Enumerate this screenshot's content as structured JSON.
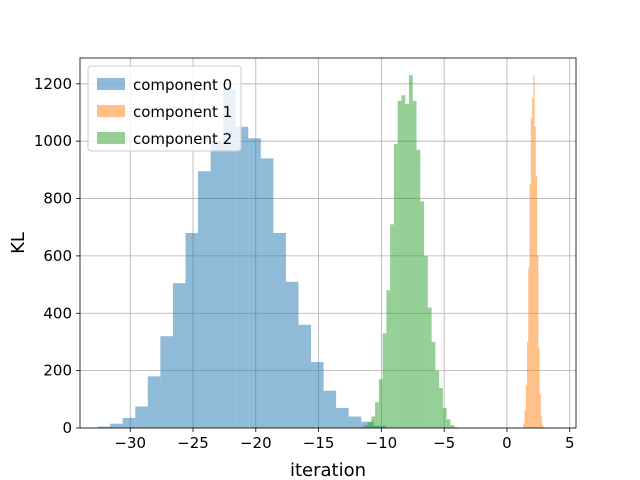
{
  "chart_data": {
    "type": "bar",
    "xlabel": "iteration",
    "ylabel": "KL",
    "xlim": [
      -34,
      5.5
    ],
    "ylim": [
      0,
      1290
    ],
    "xticks": [
      -30,
      -25,
      -20,
      -15,
      -10,
      -5,
      0,
      5
    ],
    "xtick_labels": [
      "−30",
      "−25",
      "−20",
      "−15",
      "−10",
      "−5",
      "0",
      "5"
    ],
    "yticks": [
      0,
      200,
      400,
      600,
      800,
      1000,
      1200
    ],
    "ytick_labels": [
      "0",
      "200",
      "400",
      "600",
      "800",
      "1000",
      "1200"
    ],
    "grid": true,
    "legend_position": "top-left",
    "series": [
      {
        "name": "component 0",
        "color": "#1f77b4",
        "opacity": 0.5,
        "bin_start": -32.6,
        "bin_width": 1.0,
        "counts": [
          5,
          15,
          35,
          75,
          180,
          320,
          505,
          680,
          895,
          1000,
          1180,
          1050,
          1010,
          940,
          680,
          510,
          360,
          230,
          130,
          70,
          40,
          22,
          8
        ]
      },
      {
        "name": "component 1",
        "color": "#ff7f0e",
        "opacity": 0.5,
        "bin_start": 1.3,
        "bin_width": 0.1,
        "counts": [
          15,
          60,
          150,
          300,
          560,
          850,
          1080,
          1150,
          1230,
          1050,
          880,
          600,
          280,
          120,
          40,
          10
        ]
      },
      {
        "name": "component 2",
        "color": "#2ca02c",
        "opacity": 0.5,
        "bin_start": -11.4,
        "bin_width": 0.3,
        "counts": [
          10,
          20,
          40,
          90,
          170,
          330,
          480,
          710,
          990,
          1140,
          1160,
          1130,
          1230,
          1140,
          970,
          790,
          600,
          420,
          300,
          200,
          140,
          70,
          30,
          10,
          3
        ]
      }
    ]
  }
}
